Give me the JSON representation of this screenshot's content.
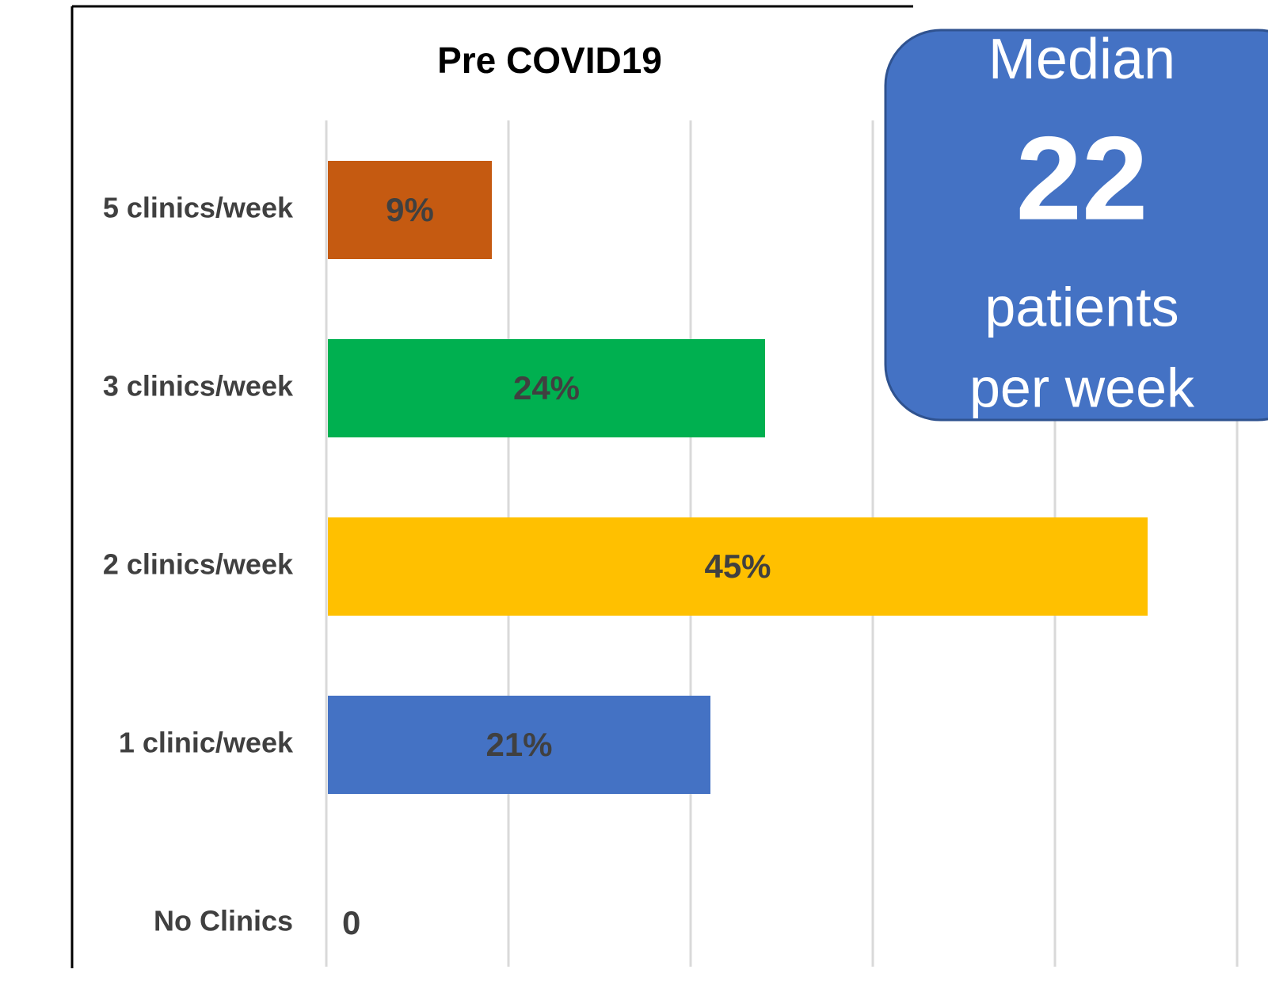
{
  "chart_data": {
    "type": "hbar",
    "title": "Pre COVID19",
    "categories": [
      "5 clinics/week",
      "3 clinics/week",
      "2 clinics/week",
      "1 clinic/week",
      "No Clinics"
    ],
    "values": [
      9,
      24,
      45,
      21,
      0
    ],
    "value_labels": [
      "9%",
      "24%",
      "45%",
      "21%",
      "0"
    ],
    "colors": [
      "#c55a11",
      "#00b050",
      "#ffc000",
      "#4472c4",
      "#4472c4"
    ],
    "xlim": [
      0,
      50
    ],
    "xticks": [
      0,
      10,
      20,
      30,
      40,
      50
    ],
    "grid": true,
    "annotation": {
      "lines": [
        "Median",
        "22",
        "patients",
        "per week"
      ],
      "color": "#4472c4"
    }
  }
}
